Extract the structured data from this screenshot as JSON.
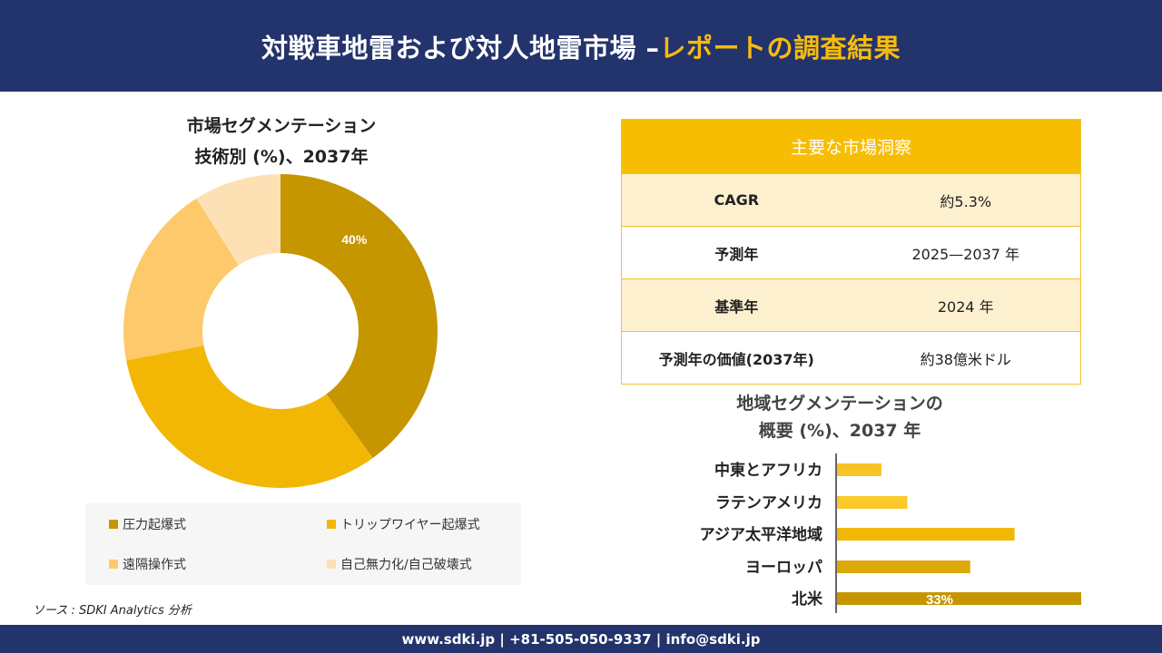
{
  "header": {
    "title_main": "対戦車地雷および対人地雷市場 –",
    "title_accent": "レポートの調査結果"
  },
  "left_panel": {
    "title_line1": "市場セグメンテーション",
    "title_line2": "技術別 (%)、2037年"
  },
  "legend": {
    "items": [
      {
        "label": "圧力起爆式",
        "color": "#c59600"
      },
      {
        "label": "トリップワイヤー起爆式",
        "color": "#f2b705"
      },
      {
        "label": "遠隔操作式",
        "color": "#fdc96a"
      },
      {
        "label": "自己無力化/自己破壊式",
        "color": "#fde1b5"
      }
    ]
  },
  "source": "ソース : SDKI Analytics 分析",
  "insights": {
    "heading": "主要な市場洞察",
    "rows": [
      {
        "label": "CAGR",
        "value": "約5.3%"
      },
      {
        "label": "予測年",
        "value": "2025—2037 年"
      },
      {
        "label": "基準年",
        "value": "2024 年"
      },
      {
        "label": "予測年の価値(2037年)",
        "value": "約38億米ドル"
      }
    ]
  },
  "region": {
    "title_line1": "地域セグメンテーションの",
    "title_line2": "概要 (%)、2037 年"
  },
  "footer": "www.sdki.jp | +81-505-050-9337 | info@sdki.jp",
  "chart_data": [
    {
      "type": "pie",
      "hole": true,
      "categories": [
        "圧力起爆式",
        "トリップワイヤー起爆式",
        "遠隔操作式",
        "自己無力化/自己破壊式"
      ],
      "values": [
        40,
        32,
        19,
        9
      ],
      "colors": [
        "#c59600",
        "#f2b705",
        "#fdc96a",
        "#fde1b5"
      ],
      "data_labels": [
        "40%",
        "",
        "",
        ""
      ]
    },
    {
      "type": "bar",
      "orientation": "horizontal",
      "categories": [
        "中東とアフリカ",
        "ラテンアメリカ",
        "アジア太平洋地域",
        "ヨーロッパ",
        "北米"
      ],
      "values": [
        6,
        9.5,
        24,
        18,
        33
      ],
      "colors": [
        "#f7c325",
        "#fbc92a",
        "#f2b705",
        "#ddaa0a",
        "#c59600"
      ],
      "data_labels": [
        "",
        "",
        "",
        "",
        "33%"
      ],
      "xlim": [
        0,
        33
      ]
    }
  ]
}
